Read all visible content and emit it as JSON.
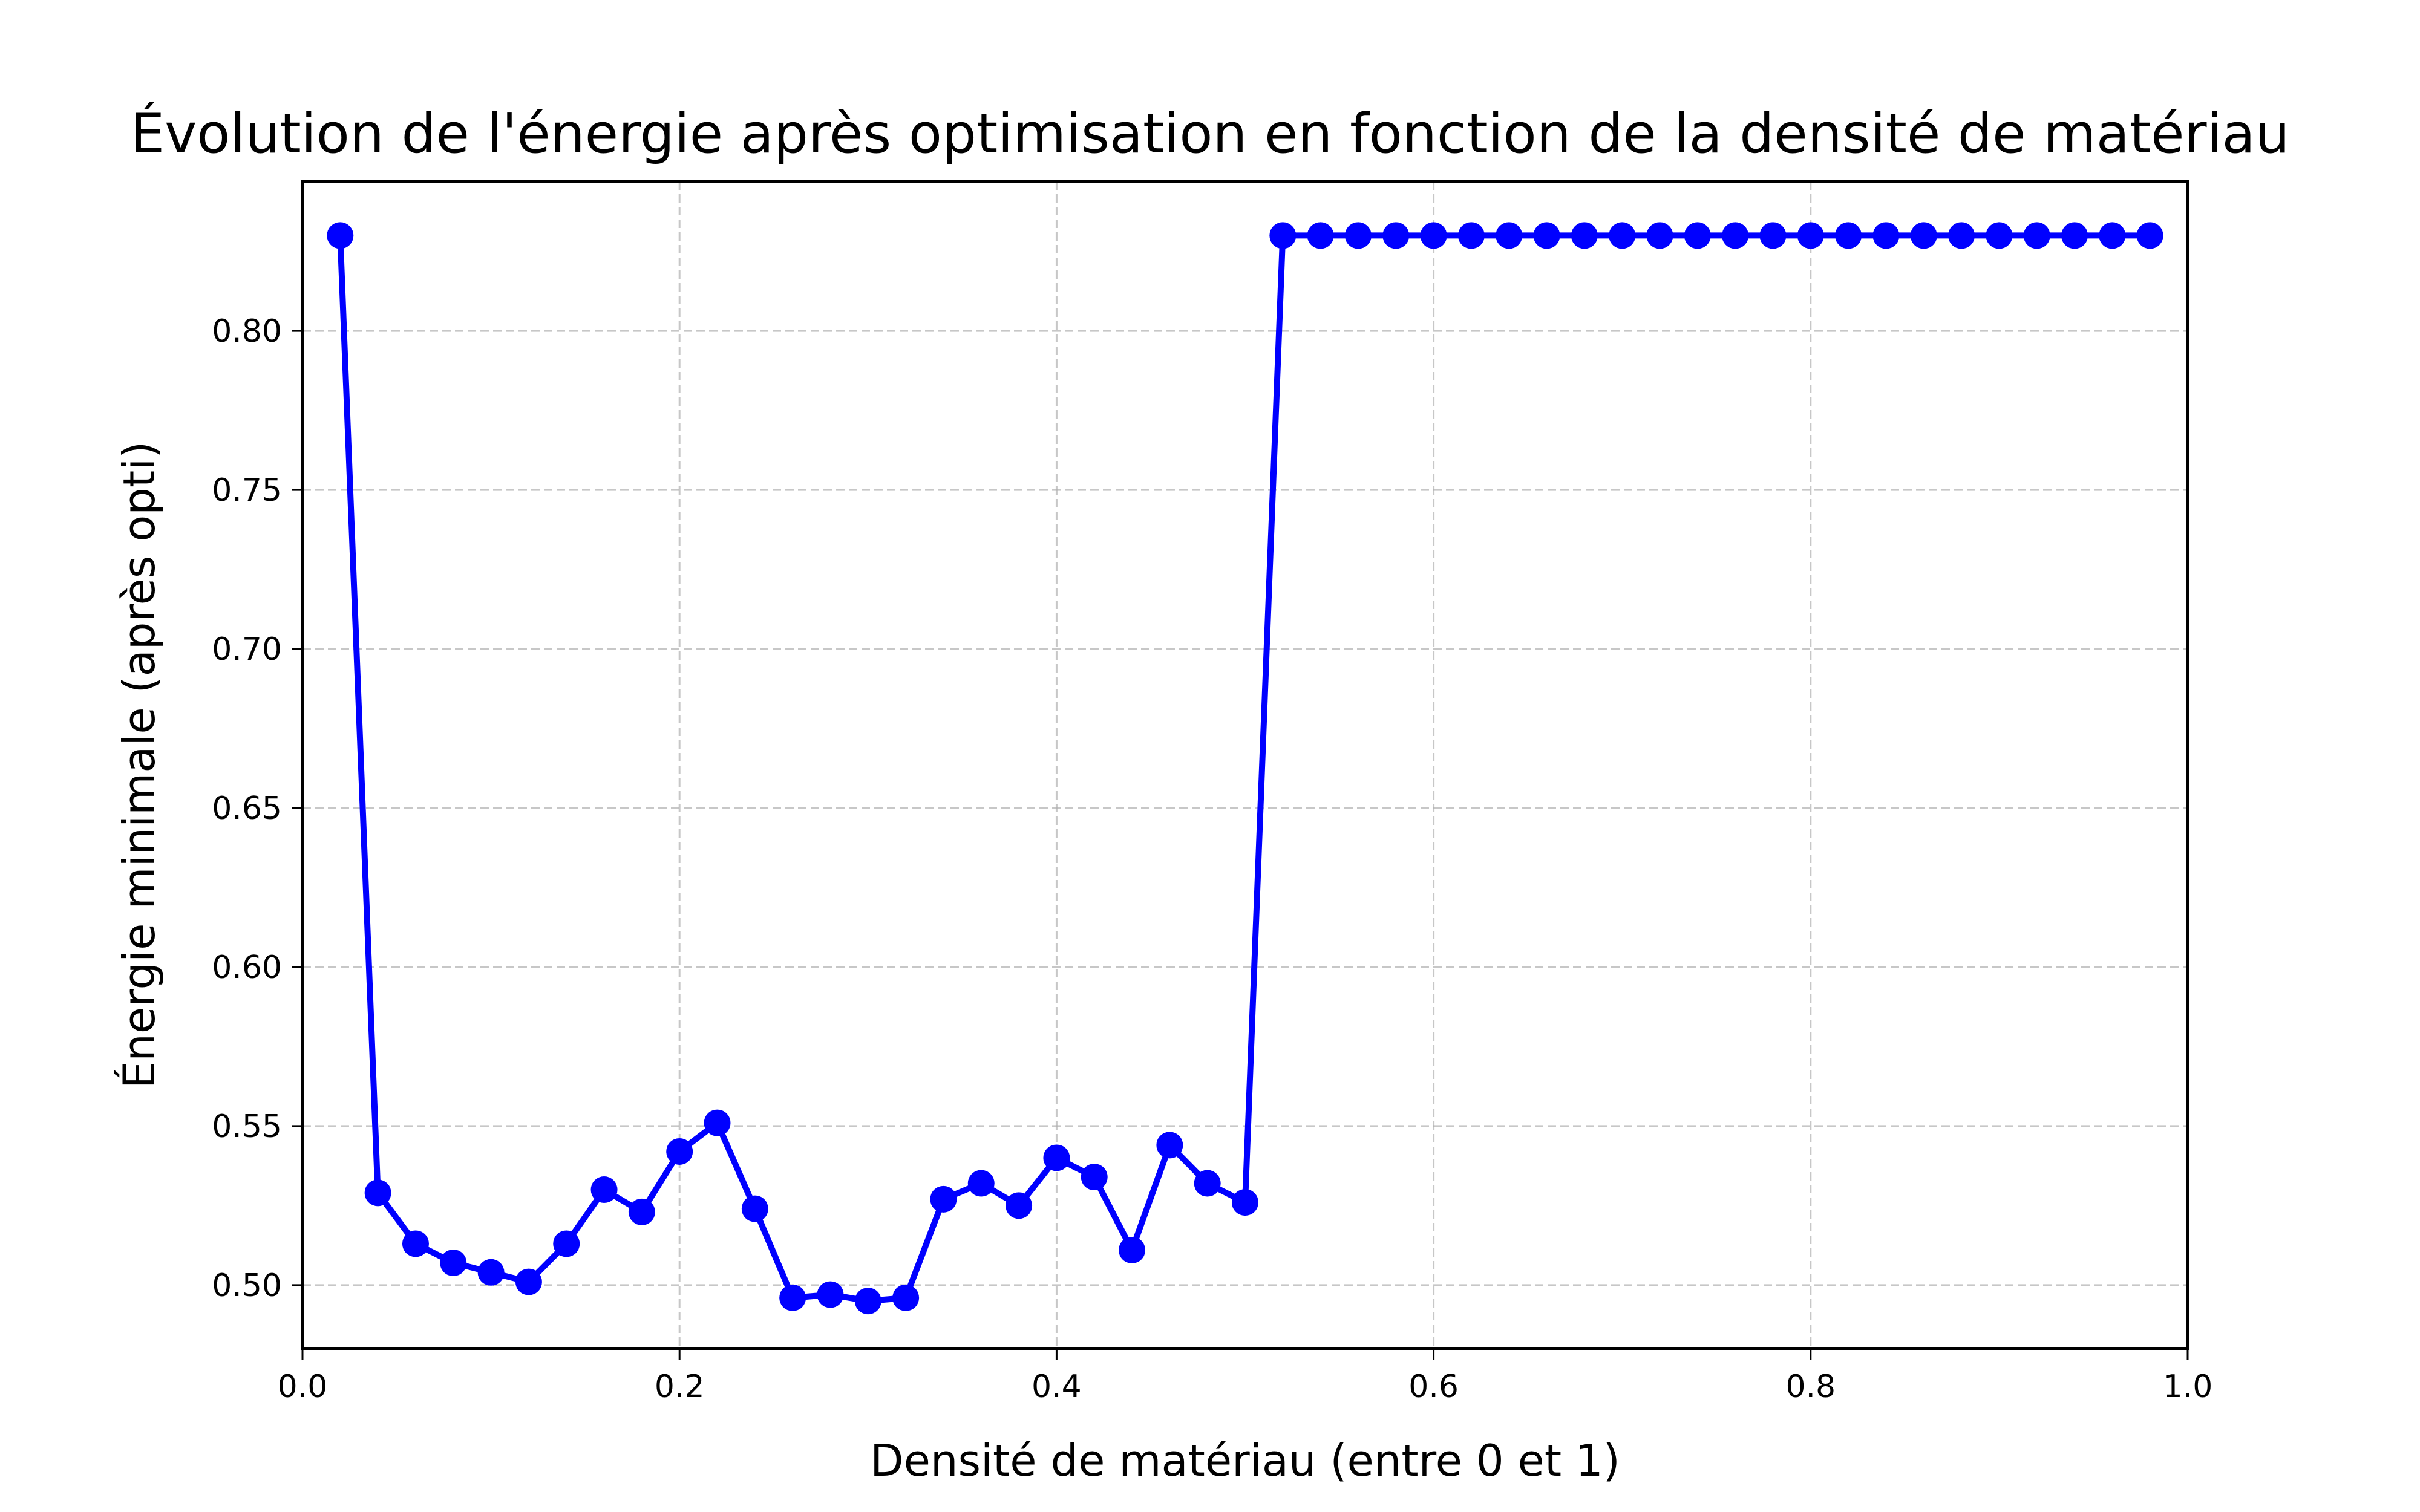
{
  "chart_data": {
    "type": "line",
    "title": "Évolution de l'énergie après optimisation en fonction de la densité de matériau",
    "xlabel": "Densité de matériau (entre 0 et 1)",
    "ylabel": "Énergie minimale (après opti)",
    "xlim": [
      0.0,
      1.0
    ],
    "ylim": [
      0.48,
      0.847
    ],
    "xticks": [
      0.0,
      0.2,
      0.4,
      0.6,
      0.8,
      1.0
    ],
    "xtick_labels": [
      "0.0",
      "0.2",
      "0.4",
      "0.6",
      "0.8",
      "1.0"
    ],
    "yticks": [
      0.5,
      0.55,
      0.6,
      0.65,
      0.7,
      0.75,
      0.8
    ],
    "ytick_labels": [
      "0.50",
      "0.55",
      "0.60",
      "0.65",
      "0.70",
      "0.75",
      "0.80"
    ],
    "grid": true,
    "series": [
      {
        "color": "#0000ff",
        "marker": "circle",
        "x": [
          0.02,
          0.04,
          0.06,
          0.08,
          0.1,
          0.12,
          0.14,
          0.16,
          0.18,
          0.2,
          0.22,
          0.24,
          0.26,
          0.28,
          0.3,
          0.32,
          0.34,
          0.36,
          0.38,
          0.4,
          0.42,
          0.44,
          0.46,
          0.48,
          0.5,
          0.52,
          0.54,
          0.56,
          0.58,
          0.6,
          0.62,
          0.64,
          0.66,
          0.68,
          0.7,
          0.72,
          0.74,
          0.76,
          0.78,
          0.8,
          0.82,
          0.84,
          0.86,
          0.88,
          0.9,
          0.92,
          0.94,
          0.96,
          0.98
        ],
        "values": [
          0.83,
          0.529,
          0.513,
          0.507,
          0.504,
          0.501,
          0.513,
          0.53,
          0.523,
          0.542,
          0.551,
          0.524,
          0.496,
          0.497,
          0.495,
          0.496,
          0.527,
          0.532,
          0.525,
          0.54,
          0.534,
          0.511,
          0.544,
          0.532,
          0.526,
          0.83,
          0.83,
          0.83,
          0.83,
          0.83,
          0.83,
          0.83,
          0.83,
          0.83,
          0.83,
          0.83,
          0.83,
          0.83,
          0.83,
          0.83,
          0.83,
          0.83,
          0.83,
          0.83,
          0.83,
          0.83,
          0.83,
          0.83,
          0.83
        ]
      }
    ]
  }
}
